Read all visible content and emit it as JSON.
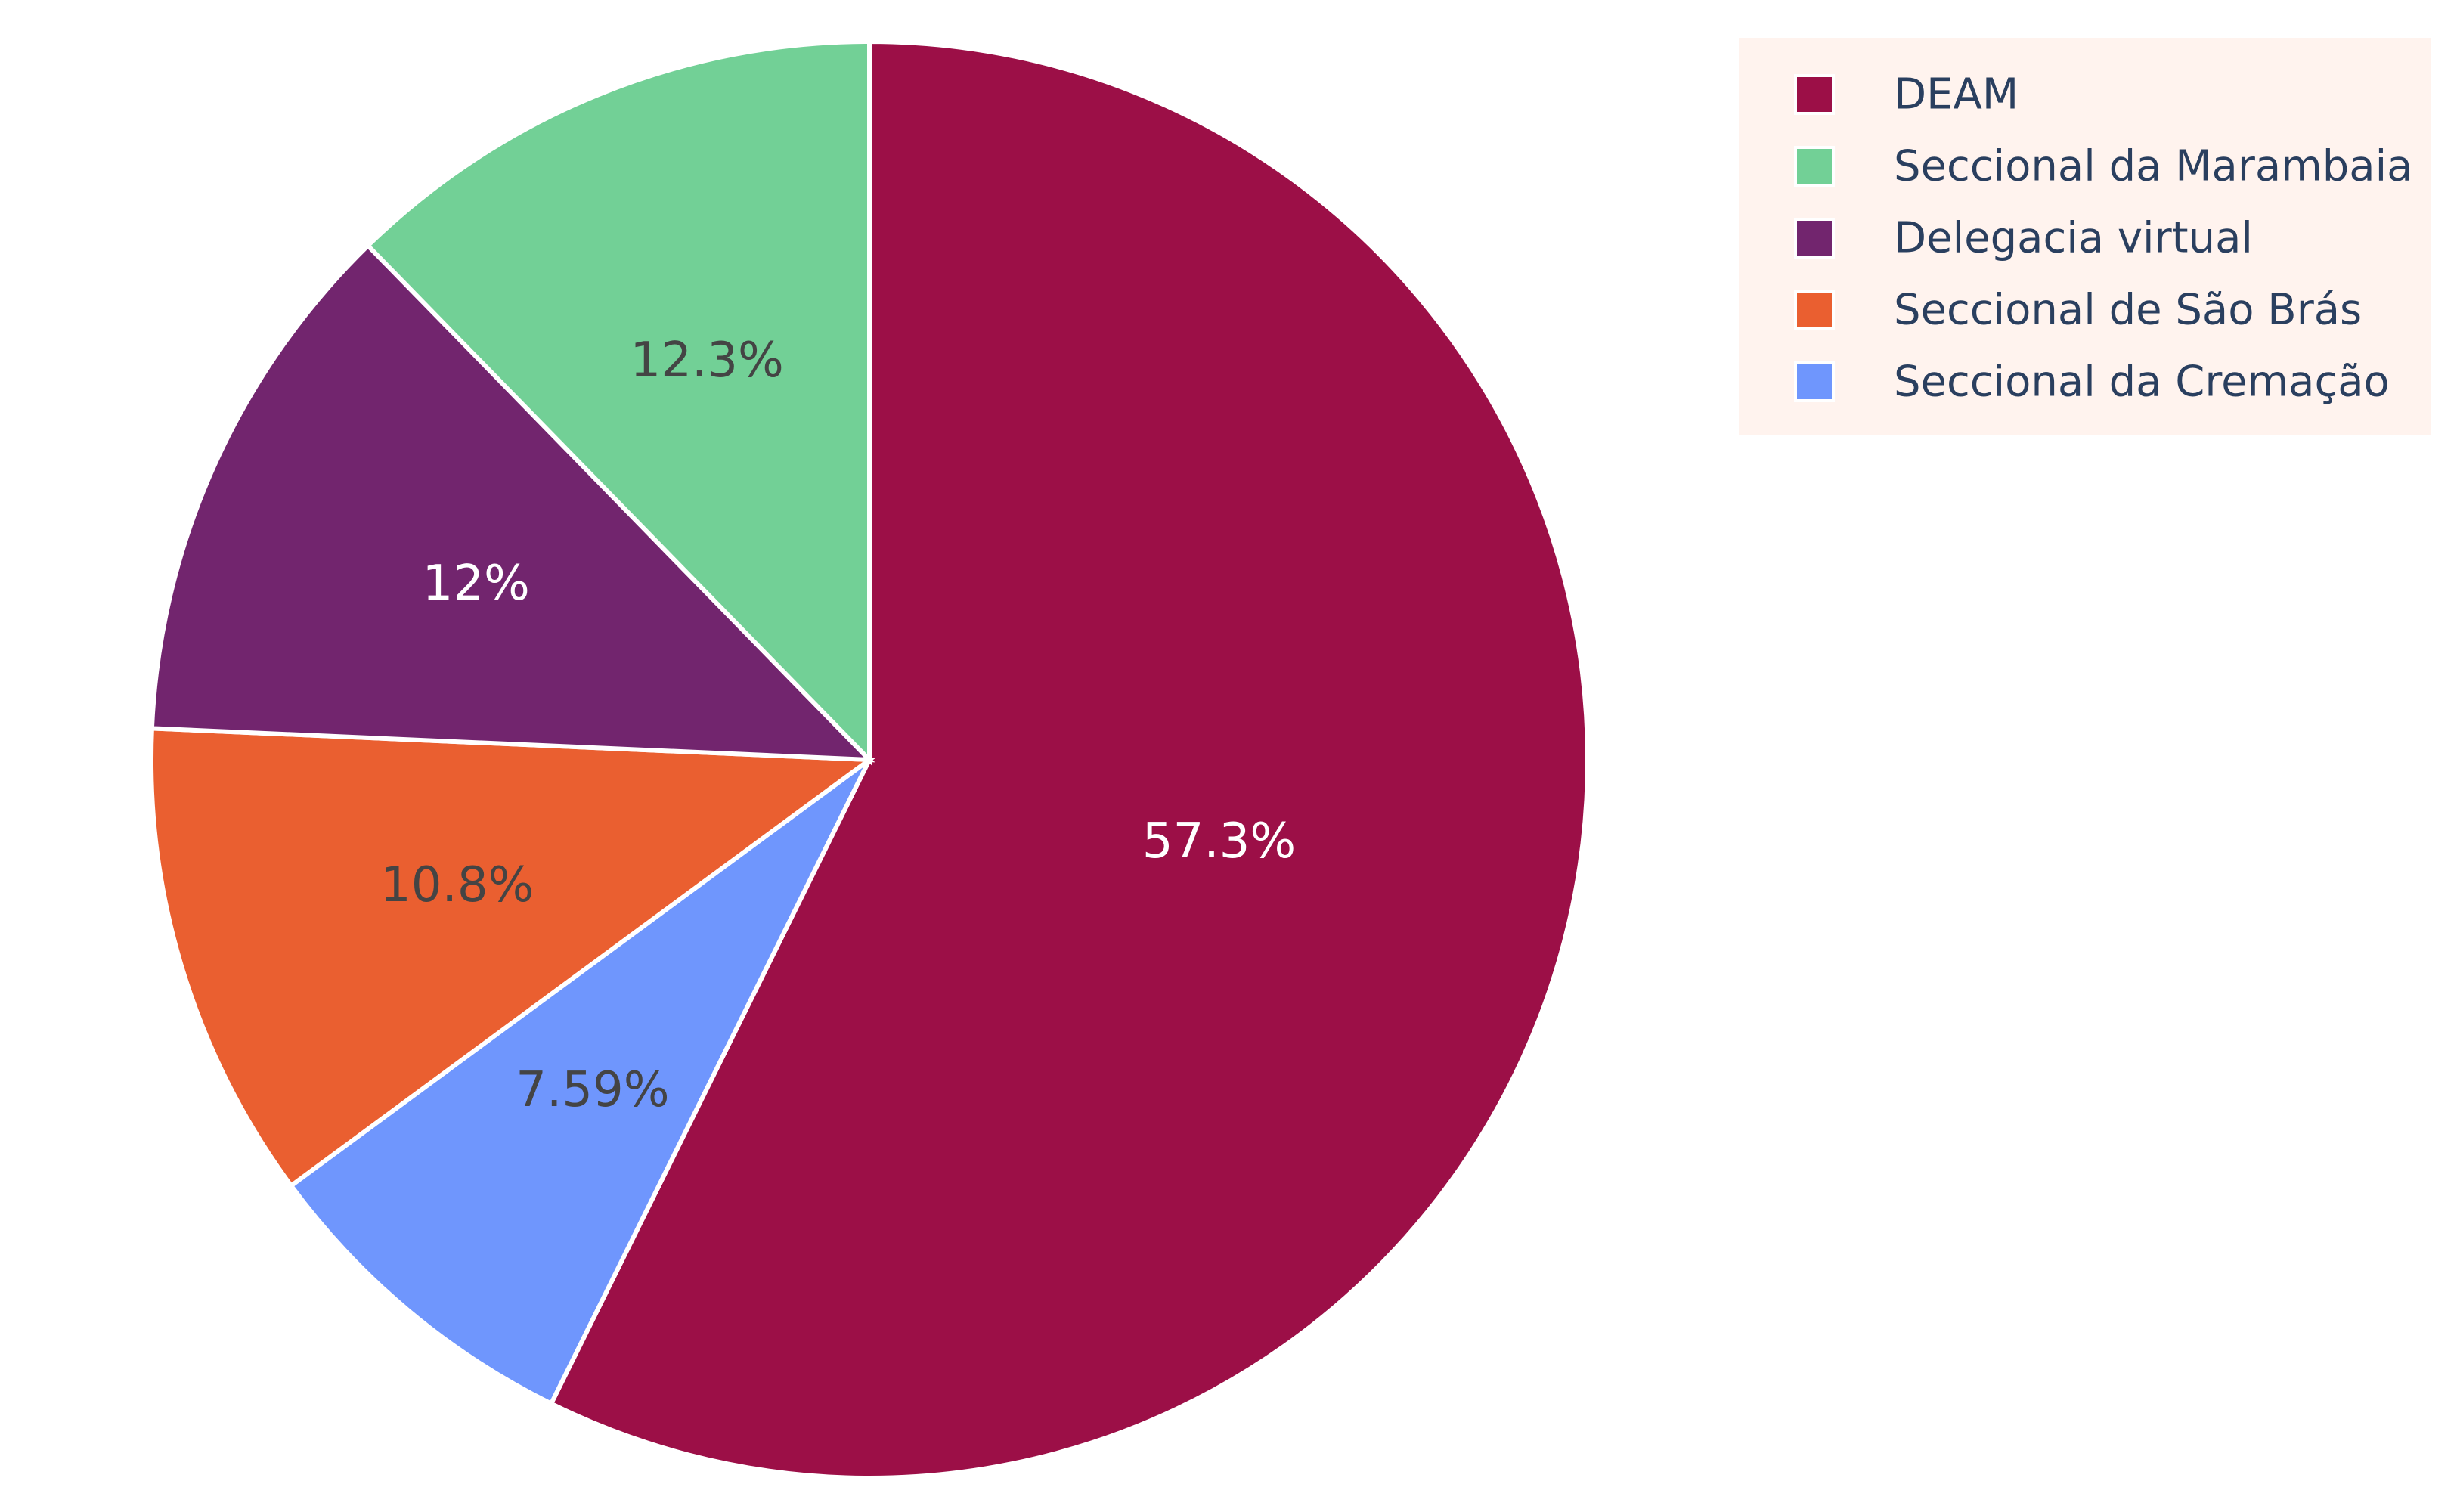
{
  "chart_data": {
    "type": "pie",
    "categories": [
      "DEAM",
      "Seccional da Marambaia",
      "Delegacia virtual",
      "Seccional de São Brás",
      "Seccional da Cremação"
    ],
    "values": [
      57.3,
      12.3,
      12.0,
      10.8,
      7.59
    ],
    "labels": [
      "57.3%",
      "12.3%",
      "12%",
      "10.8%",
      "7.59%"
    ],
    "colors": [
      "#9c0f47",
      "#72d096",
      "#72256e",
      "#ea5f30",
      "#6f96fd"
    ],
    "label_colors": [
      "#ffffff",
      "#444444",
      "#ffffff",
      "#444444",
      "#444444"
    ],
    "start": "top",
    "direction": "clockwise",
    "legend": {
      "placement": "top-right",
      "background": "#fff3ee"
    }
  }
}
